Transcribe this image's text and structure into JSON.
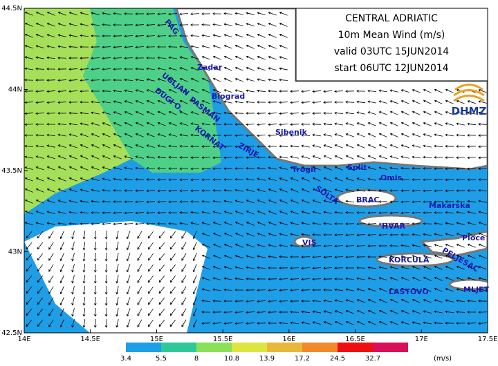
{
  "header": {
    "lines": [
      "CENTRAL ADRIATIC",
      "10m Mean Wind (m/s)",
      "valid 03UTC 15JUN2014",
      "start 06UTC 12JUN2014"
    ],
    "logo": "DHMZ"
  },
  "map": {
    "xlim": [
      14,
      17.5
    ],
    "ylim": [
      42.5,
      44.5
    ],
    "xticks": [
      {
        "value": 14,
        "label": "14E"
      },
      {
        "value": 14.5,
        "label": "14.5E"
      },
      {
        "value": 15,
        "label": "15E"
      },
      {
        "value": 15.5,
        "label": "15.5E"
      },
      {
        "value": 16,
        "label": "16E"
      },
      {
        "value": 16.5,
        "label": "16.5E"
      },
      {
        "value": 17,
        "label": "17E"
      },
      {
        "value": 17.5,
        "label": "17.5E"
      }
    ],
    "yticks": [
      {
        "value": 42.5,
        "label": "42.5N"
      },
      {
        "value": 43,
        "label": "43N"
      },
      {
        "value": 43.5,
        "label": "43.5N"
      },
      {
        "value": 44,
        "label": "44N"
      },
      {
        "value": 44.5,
        "label": "44.5N"
      }
    ],
    "places": [
      "PAG",
      "Zadar",
      "UGLJAN",
      "PASMAN",
      "Biograd",
      "DUGI O.",
      "KORNAT",
      "Sibenik",
      "ZIRJE",
      "Trogir",
      "Split",
      "Omis",
      "SOLTA",
      "BRAC",
      "Makarska",
      "HVAR",
      "VIS",
      "Ploce",
      "PELJESAC",
      "KORCULA",
      "LASTOVO",
      "MLJET"
    ]
  },
  "colorbar": {
    "labels": [
      3.4,
      5.5,
      8,
      10.8,
      13.9,
      17.2,
      24.5,
      32.7
    ],
    "colors": [
      "#1e9ee6",
      "#2ec99a",
      "#8be05a",
      "#dde640",
      "#e8b83a",
      "#f08a2a",
      "#ee1010",
      "#d8105a"
    ],
    "unit": "(m/s)"
  }
}
